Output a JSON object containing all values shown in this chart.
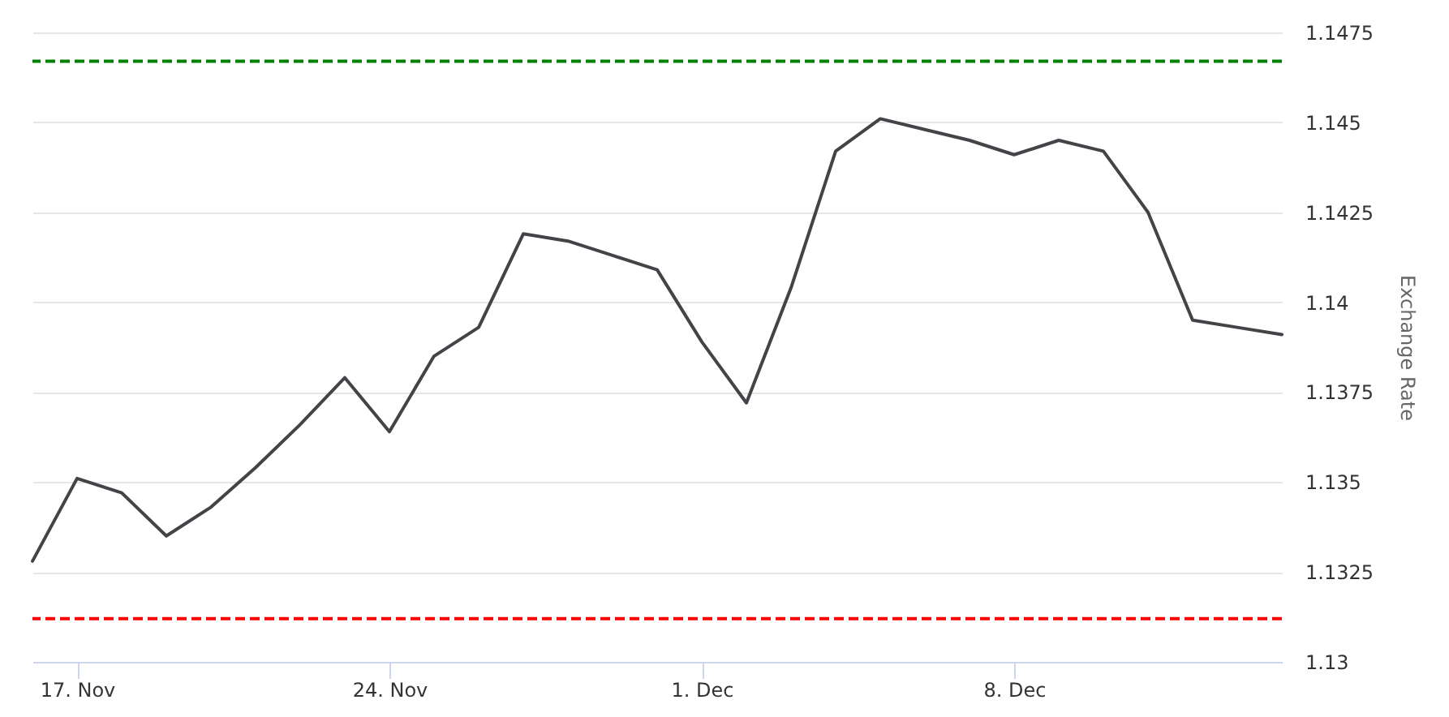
{
  "chart_data": {
    "type": "line",
    "ylabel": "Exchange Rate",
    "x": [
      "--11-16",
      "--11-17",
      "--11-18",
      "--11-19",
      "--11-20",
      "--11-21",
      "--11-22",
      "--11-23",
      "--11-24",
      "--11-25",
      "--11-26",
      "--11-27",
      "--11-28",
      "--11-29",
      "--11-30",
      "--12-01",
      "--12-02",
      "--12-03",
      "--12-04",
      "--12-05",
      "--12-06",
      "--12-07",
      "--12-08",
      "--12-09",
      "--12-10",
      "--12-11",
      "--12-12",
      "--12-13",
      "--12-14"
    ],
    "series": [
      {
        "color": "#434348",
        "values": [
          1.1328,
          1.1351,
          1.1347,
          1.1335,
          1.1343,
          1.1354,
          1.1366,
          1.1379,
          1.1364,
          1.1385,
          1.1393,
          1.1419,
          1.1417,
          1.1413,
          1.1409,
          1.1389,
          1.1372,
          1.1404,
          1.1442,
          1.1451,
          1.1448,
          1.1445,
          1.1441,
          1.1445,
          1.1442,
          1.1425,
          1.1395,
          1.1393,
          1.1391
        ]
      }
    ],
    "xlim": [
      "--11-16",
      "--12-14"
    ],
    "xticks": [
      {
        "value": "--11-17",
        "label": "17. Nov"
      },
      {
        "value": "--11-24",
        "label": "24. Nov"
      },
      {
        "value": "--12-01",
        "label": "1. Dec"
      },
      {
        "value": "--12-08",
        "label": "8. Dec"
      }
    ],
    "ylim": [
      1.13,
      1.1475
    ],
    "yticks": [
      1.13,
      1.1325,
      1.135,
      1.1375,
      1.14,
      1.1425,
      1.145,
      1.1475
    ],
    "ref_lines": [
      {
        "axis": "y",
        "value": 1.1467,
        "color": "#008000",
        "line_style": "dashed"
      },
      {
        "axis": "y",
        "value": 1.1312,
        "color": "#ff0000",
        "line_style": "dashed"
      }
    ],
    "grid": "y",
    "marker": "none",
    "line_style": "solid"
  }
}
